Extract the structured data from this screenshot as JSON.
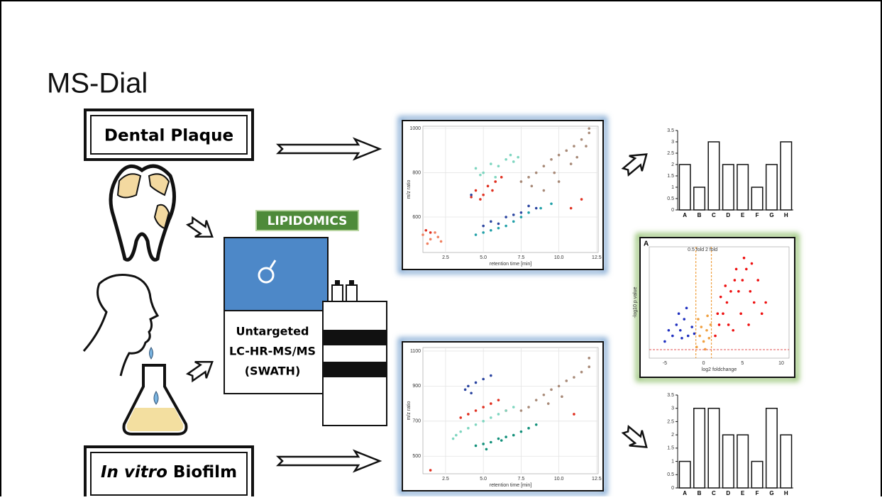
{
  "title": "MS-Dial",
  "boxes": {
    "plaque": "Dental Plaque",
    "biofilm": {
      "italic": "In vitro",
      "rest": "Biofilm"
    }
  },
  "instrument": {
    "badge": "LIPIDOMICS",
    "lines": [
      "Untargeted",
      "LC-HR-MS/MS",
      "(SWATH)"
    ]
  },
  "scatter_top": {
    "type": "scatter",
    "xlabel": "retention time [min]",
    "ylabel": "m/z ratio",
    "xlim": [
      1,
      12.6
    ],
    "ylim": [
      440,
      1010
    ],
    "xticks": [
      2.5,
      {
        "value": 5,
        "label": "5.0"
      },
      7.5,
      {
        "value": 10,
        "label": "10.0"
      },
      12.5
    ],
    "yticks": [
      600,
      800,
      1000
    ],
    "series": [
      {
        "color": "#7fd6c0",
        "x": [
          4.5,
          5,
          5.5,
          6,
          6.5,
          7,
          5.8,
          6.8,
          7.3,
          4.8
        ],
        "values": [
          820,
          800,
          840,
          830,
          860,
          850,
          780,
          880,
          870,
          790
        ]
      },
      {
        "color": "#e03020",
        "x": [
          4.2,
          4.5,
          5,
          5.3,
          5.8,
          6.2,
          10.8,
          1.2,
          1.5,
          11.5,
          4.8,
          5.6
        ],
        "values": [
          690,
          720,
          700,
          740,
          760,
          780,
          640,
          540,
          530,
          680,
          680,
          720
        ]
      },
      {
        "color": "#2a44a0",
        "x": [
          5,
          5.5,
          6,
          6.5,
          7,
          7.5,
          8,
          8.5,
          4.2
        ],
        "values": [
          560,
          580,
          570,
          600,
          610,
          620,
          650,
          640,
          700
        ]
      },
      {
        "color": "#20a0a8",
        "x": [
          4.5,
          5,
          5.5,
          6,
          6.5,
          7,
          7.5,
          8,
          8.8,
          9.5
        ],
        "values": [
          520,
          530,
          540,
          550,
          560,
          580,
          600,
          620,
          640,
          660
        ]
      },
      {
        "color": "#a88a78",
        "x": [
          7.5,
          8,
          8.5,
          9,
          9.5,
          10,
          10.5,
          11,
          11.5,
          12,
          12,
          11.8,
          9,
          10,
          8.2,
          10.8,
          11.2,
          9.7
        ],
        "values": [
          760,
          780,
          800,
          830,
          860,
          880,
          900,
          920,
          950,
          980,
          1000,
          920,
          720,
          760,
          740,
          840,
          870,
          800
        ]
      },
      {
        "color": "#f08060",
        "x": [
          1,
          1.5,
          2,
          1.3,
          2.2,
          1.8
        ],
        "values": [
          520,
          500,
          510,
          480,
          490,
          530
        ]
      }
    ]
  },
  "scatter_bottom": {
    "type": "scatter",
    "xlabel": "retention time [min]",
    "ylabel": "m/z ratio",
    "xlim": [
      1,
      12.6
    ],
    "ylim": [
      400,
      1120
    ],
    "xticks": [
      2.5,
      {
        "value": 5,
        "label": "5.0"
      },
      7.5,
      {
        "value": 10,
        "label": "10.0"
      },
      12.5
    ],
    "yticks": [
      500,
      700,
      900,
      1100
    ],
    "series": [
      {
        "color": "#2a44a0",
        "x": [
          4,
          4.5,
          5,
          5.5,
          3.8,
          4.2
        ],
        "values": [
          900,
          920,
          940,
          960,
          880,
          860
        ]
      },
      {
        "color": "#e03020",
        "x": [
          3.5,
          4,
          4.5,
          5,
          5.5,
          6,
          6.5,
          11,
          1.5
        ],
        "values": [
          720,
          740,
          760,
          780,
          800,
          820,
          760,
          740,
          420
        ]
      },
      {
        "color": "#7fd6c0",
        "x": [
          3.5,
          4,
          4.5,
          5,
          5.5,
          6,
          6.5,
          7,
          3,
          3.2
        ],
        "values": [
          640,
          660,
          680,
          700,
          720,
          740,
          760,
          780,
          600,
          620
        ]
      },
      {
        "color": "#12907a",
        "x": [
          4.5,
          5,
          5.5,
          6,
          6.5,
          7,
          7.5,
          8,
          8.5,
          5.2,
          6.2
        ],
        "values": [
          560,
          570,
          580,
          600,
          610,
          620,
          640,
          660,
          680,
          540,
          590
        ]
      },
      {
        "color": "#a88a78",
        "x": [
          7.5,
          8,
          8.5,
          9,
          9.5,
          10,
          10.5,
          11,
          11.5,
          12,
          12,
          9.3,
          10.2
        ],
        "values": [
          760,
          780,
          820,
          850,
          880,
          900,
          930,
          950,
          980,
          1010,
          1060,
          800,
          840
        ]
      }
    ]
  },
  "bars_top": {
    "type": "bar",
    "categories": [
      "A",
      "B",
      "C",
      "D",
      "E",
      "F",
      "G",
      "H"
    ],
    "values": [
      2,
      1,
      3,
      2,
      2,
      1,
      2,
      3
    ],
    "ylim": [
      0,
      3.5
    ],
    "yticks": [
      0,
      0.5,
      1,
      1.5,
      2,
      2.5,
      3,
      3.5
    ]
  },
  "bars_bottom": {
    "type": "bar",
    "categories": [
      "A",
      "B",
      "C",
      "D",
      "E",
      "F",
      "G",
      "H"
    ],
    "values": [
      1,
      3,
      3,
      2,
      2,
      1,
      3,
      2
    ],
    "ylim": [
      0,
      3.5
    ],
    "yticks": [
      0,
      0.5,
      1,
      1.5,
      2,
      2.5,
      3,
      3.5
    ]
  },
  "volcano": {
    "type": "scatter",
    "panel": "A",
    "xlabel": "log2 foldchange",
    "ylabel": "-log10 p value",
    "xlim": [
      -7,
      11
    ],
    "ylim": [
      0,
      10
    ],
    "xticks": [
      -5,
      0,
      5,
      10
    ],
    "lines": [
      "0.5 fold",
      "2 fold"
    ],
    "series": [
      {
        "color": "#2030c0",
        "x": [
          -4,
          -3.5,
          -3,
          -2.5,
          -2,
          -1.5,
          -3.2,
          -2.2,
          -5,
          -4.5,
          -1.2,
          -2.8
        ],
        "values": [
          2,
          3,
          2.5,
          3.5,
          2,
          2.8,
          4,
          4.5,
          1.5,
          2.5,
          2.2,
          1.8
        ]
      },
      {
        "color": "#f0a040",
        "x": [
          -0.9,
          -0.5,
          0,
          0.4,
          0.9,
          -0.7,
          0.2,
          0.7,
          -0.3,
          0.5
        ],
        "values": [
          1,
          2,
          1.5,
          2.5,
          3,
          3.5,
          0.8,
          1.8,
          2.8,
          3.8
        ]
      },
      {
        "color": "#ee1010",
        "x": [
          1.5,
          2,
          2.5,
          3,
          3.5,
          4,
          4.5,
          5,
          5.5,
          6,
          6.5,
          7,
          7.5,
          8,
          2.2,
          3.2,
          4.2,
          5.2,
          6.2,
          1.8,
          2.8,
          3.8,
          4.8,
          5.8
        ],
        "values": [
          2,
          3,
          4,
          5,
          6,
          7,
          6,
          7,
          8,
          6,
          5,
          7,
          4,
          5,
          5.5,
          3,
          8,
          9,
          8.5,
          4,
          6.5,
          2.5,
          4,
          3
        ]
      }
    ]
  }
}
